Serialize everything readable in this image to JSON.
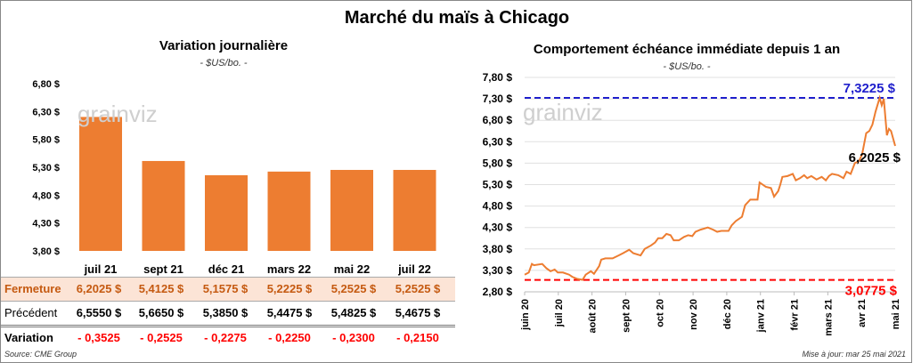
{
  "title": "Marché du maïs à Chicago",
  "left": {
    "subtitle": "Variation journalière",
    "unit": "- $US/bo. -"
  },
  "right": {
    "subtitle": "Comportement échéance immédiate depuis 1 an",
    "unit": "- $US/bo. -"
  },
  "watermark": "grainviz",
  "source": "Source: CME Group",
  "updated": "Mise à jour: mar 25 mai 2021",
  "colors": {
    "bar": "#ED7D31",
    "line": "#ED7D31",
    "max": "#1F1FCC",
    "min": "#FF0000",
    "fermeture_bg": "#FCE4D6",
    "fermeture_text": "#C55A11",
    "variation": "#FF0000"
  },
  "table": {
    "rows": [
      {
        "label": "Fermeture",
        "values": [
          "6,2025  $",
          "5,4125  $",
          "5,1575  $",
          "5,2225  $",
          "5,2525  $",
          "5,2525  $"
        ]
      },
      {
        "label": "Précédent",
        "values": [
          "6,5550  $",
          "5,6650  $",
          "5,3850  $",
          "5,4475  $",
          "5,4825  $",
          "5,4675  $"
        ]
      },
      {
        "label": "Variation",
        "values": [
          "- 0,3525",
          "- 0,2525",
          "- 0,2275",
          "- 0,2250",
          "- 0,2300",
          "- 0,2150"
        ]
      }
    ]
  },
  "chart_data": [
    {
      "type": "bar",
      "categories": [
        "juil 21",
        "sept 21",
        "déc 21",
        "mars 22",
        "mai 22",
        "juil 22"
      ],
      "values": [
        6.2025,
        5.4125,
        5.1575,
        5.2225,
        5.2525,
        5.2525
      ],
      "ylim": [
        3.8,
        6.8
      ],
      "yticks": [
        "3,80 $",
        "4,30 $",
        "4,80 $",
        "5,30 $",
        "5,80 $",
        "6,30 $",
        "6,80 $"
      ],
      "grid": false
    },
    {
      "type": "line",
      "ylim": [
        2.8,
        7.8
      ],
      "yticks": [
        "2,80 $",
        "3,30 $",
        "3,80 $",
        "4,30 $",
        "4,80 $",
        "5,30 $",
        "5,80 $",
        "6,30 $",
        "6,80 $",
        "7,30 $",
        "7,80 $"
      ],
      "xticks": [
        "juin 20",
        "juil 20",
        "août 20",
        "sept 20",
        "oct 20",
        "nov 20",
        "déc 20",
        "janv 21",
        "févr 21",
        "mars 21",
        "avr 21",
        "mai 21"
      ],
      "xrange": [
        "2020-06-01",
        "2021-05-25"
      ],
      "grid": true,
      "max": {
        "value": 7.3225,
        "label": "7,3225 $"
      },
      "min": {
        "value": 3.0775,
        "label": "3,0775 $"
      },
      "last": {
        "value": 6.2025,
        "label": "6,2025 $"
      },
      "series": [
        [
          "2020-06-01",
          3.2
        ],
        [
          "2020-06-05",
          3.25
        ],
        [
          "2020-06-08",
          3.45
        ],
        [
          "2020-06-10",
          3.42
        ],
        [
          "2020-06-18",
          3.45
        ],
        [
          "2020-06-22",
          3.35
        ],
        [
          "2020-06-26",
          3.28
        ],
        [
          "2020-06-30",
          3.32
        ],
        [
          "2020-07-03",
          3.25
        ],
        [
          "2020-07-08",
          3.25
        ],
        [
          "2020-07-14",
          3.2
        ],
        [
          "2020-07-17",
          3.15
        ],
        [
          "2020-07-22",
          3.1
        ],
        [
          "2020-07-27",
          3.08
        ],
        [
          "2020-07-30",
          3.2
        ],
        [
          "2020-08-04",
          3.28
        ],
        [
          "2020-08-07",
          3.22
        ],
        [
          "2020-08-12",
          3.4
        ],
        [
          "2020-08-14",
          3.55
        ],
        [
          "2020-08-18",
          3.58
        ],
        [
          "2020-08-25",
          3.58
        ],
        [
          "2020-08-31",
          3.65
        ],
        [
          "2020-09-04",
          3.7
        ],
        [
          "2020-09-10",
          3.78
        ],
        [
          "2020-09-14",
          3.7
        ],
        [
          "2020-09-21",
          3.65
        ],
        [
          "2020-09-25",
          3.8
        ],
        [
          "2020-10-01",
          3.88
        ],
        [
          "2020-10-05",
          3.95
        ],
        [
          "2020-10-08",
          4.05
        ],
        [
          "2020-10-12",
          4.05
        ],
        [
          "2020-10-16",
          4.15
        ],
        [
          "2020-10-20",
          4.12
        ],
        [
          "2020-10-23",
          4.0
        ],
        [
          "2020-10-28",
          4.0
        ],
        [
          "2020-11-02",
          4.08
        ],
        [
          "2020-11-06",
          4.12
        ],
        [
          "2020-11-10",
          4.1
        ],
        [
          "2020-11-13",
          4.2
        ],
        [
          "2020-11-18",
          4.25
        ],
        [
          "2020-11-25",
          4.3
        ],
        [
          "2020-11-30",
          4.25
        ],
        [
          "2020-12-04",
          4.2
        ],
        [
          "2020-12-08",
          4.22
        ],
        [
          "2020-12-15",
          4.22
        ],
        [
          "2020-12-18",
          4.35
        ],
        [
          "2020-12-22",
          4.45
        ],
        [
          "2020-12-28",
          4.55
        ],
        [
          "2020-12-31",
          4.82
        ],
        [
          "2021-01-05",
          4.95
        ],
        [
          "2021-01-12",
          4.95
        ],
        [
          "2021-01-14",
          5.35
        ],
        [
          "2021-01-20",
          5.25
        ],
        [
          "2021-01-25",
          5.22
        ],
        [
          "2021-01-28",
          5.02
        ],
        [
          "2021-02-01",
          5.15
        ],
        [
          "2021-02-03",
          5.3
        ],
        [
          "2021-02-05",
          5.48
        ],
        [
          "2021-02-10",
          5.5
        ],
        [
          "2021-02-15",
          5.55
        ],
        [
          "2021-02-18",
          5.4
        ],
        [
          "2021-02-22",
          5.45
        ],
        [
          "2021-02-26",
          5.52
        ],
        [
          "2021-03-01",
          5.45
        ],
        [
          "2021-03-05",
          5.5
        ],
        [
          "2021-03-10",
          5.42
        ],
        [
          "2021-03-15",
          5.48
        ],
        [
          "2021-03-19",
          5.4
        ],
        [
          "2021-03-22",
          5.5
        ],
        [
          "2021-03-25",
          5.55
        ],
        [
          "2021-03-31",
          5.52
        ],
        [
          "2021-04-05",
          5.45
        ],
        [
          "2021-04-08",
          5.6
        ],
        [
          "2021-04-12",
          5.55
        ],
        [
          "2021-04-16",
          5.8
        ],
        [
          "2021-04-20",
          5.85
        ],
        [
          "2021-04-23",
          6.0
        ],
        [
          "2021-04-27",
          6.5
        ],
        [
          "2021-04-30",
          6.55
        ],
        [
          "2021-05-03",
          6.7
        ],
        [
          "2021-05-06",
          7.0
        ],
        [
          "2021-05-10",
          7.3225
        ],
        [
          "2021-05-12",
          7.15
        ],
        [
          "2021-05-14",
          7.3
        ],
        [
          "2021-05-17",
          6.45
        ],
        [
          "2021-05-19",
          6.6
        ],
        [
          "2021-05-21",
          6.55
        ],
        [
          "2021-05-25",
          6.2025
        ]
      ]
    }
  ]
}
